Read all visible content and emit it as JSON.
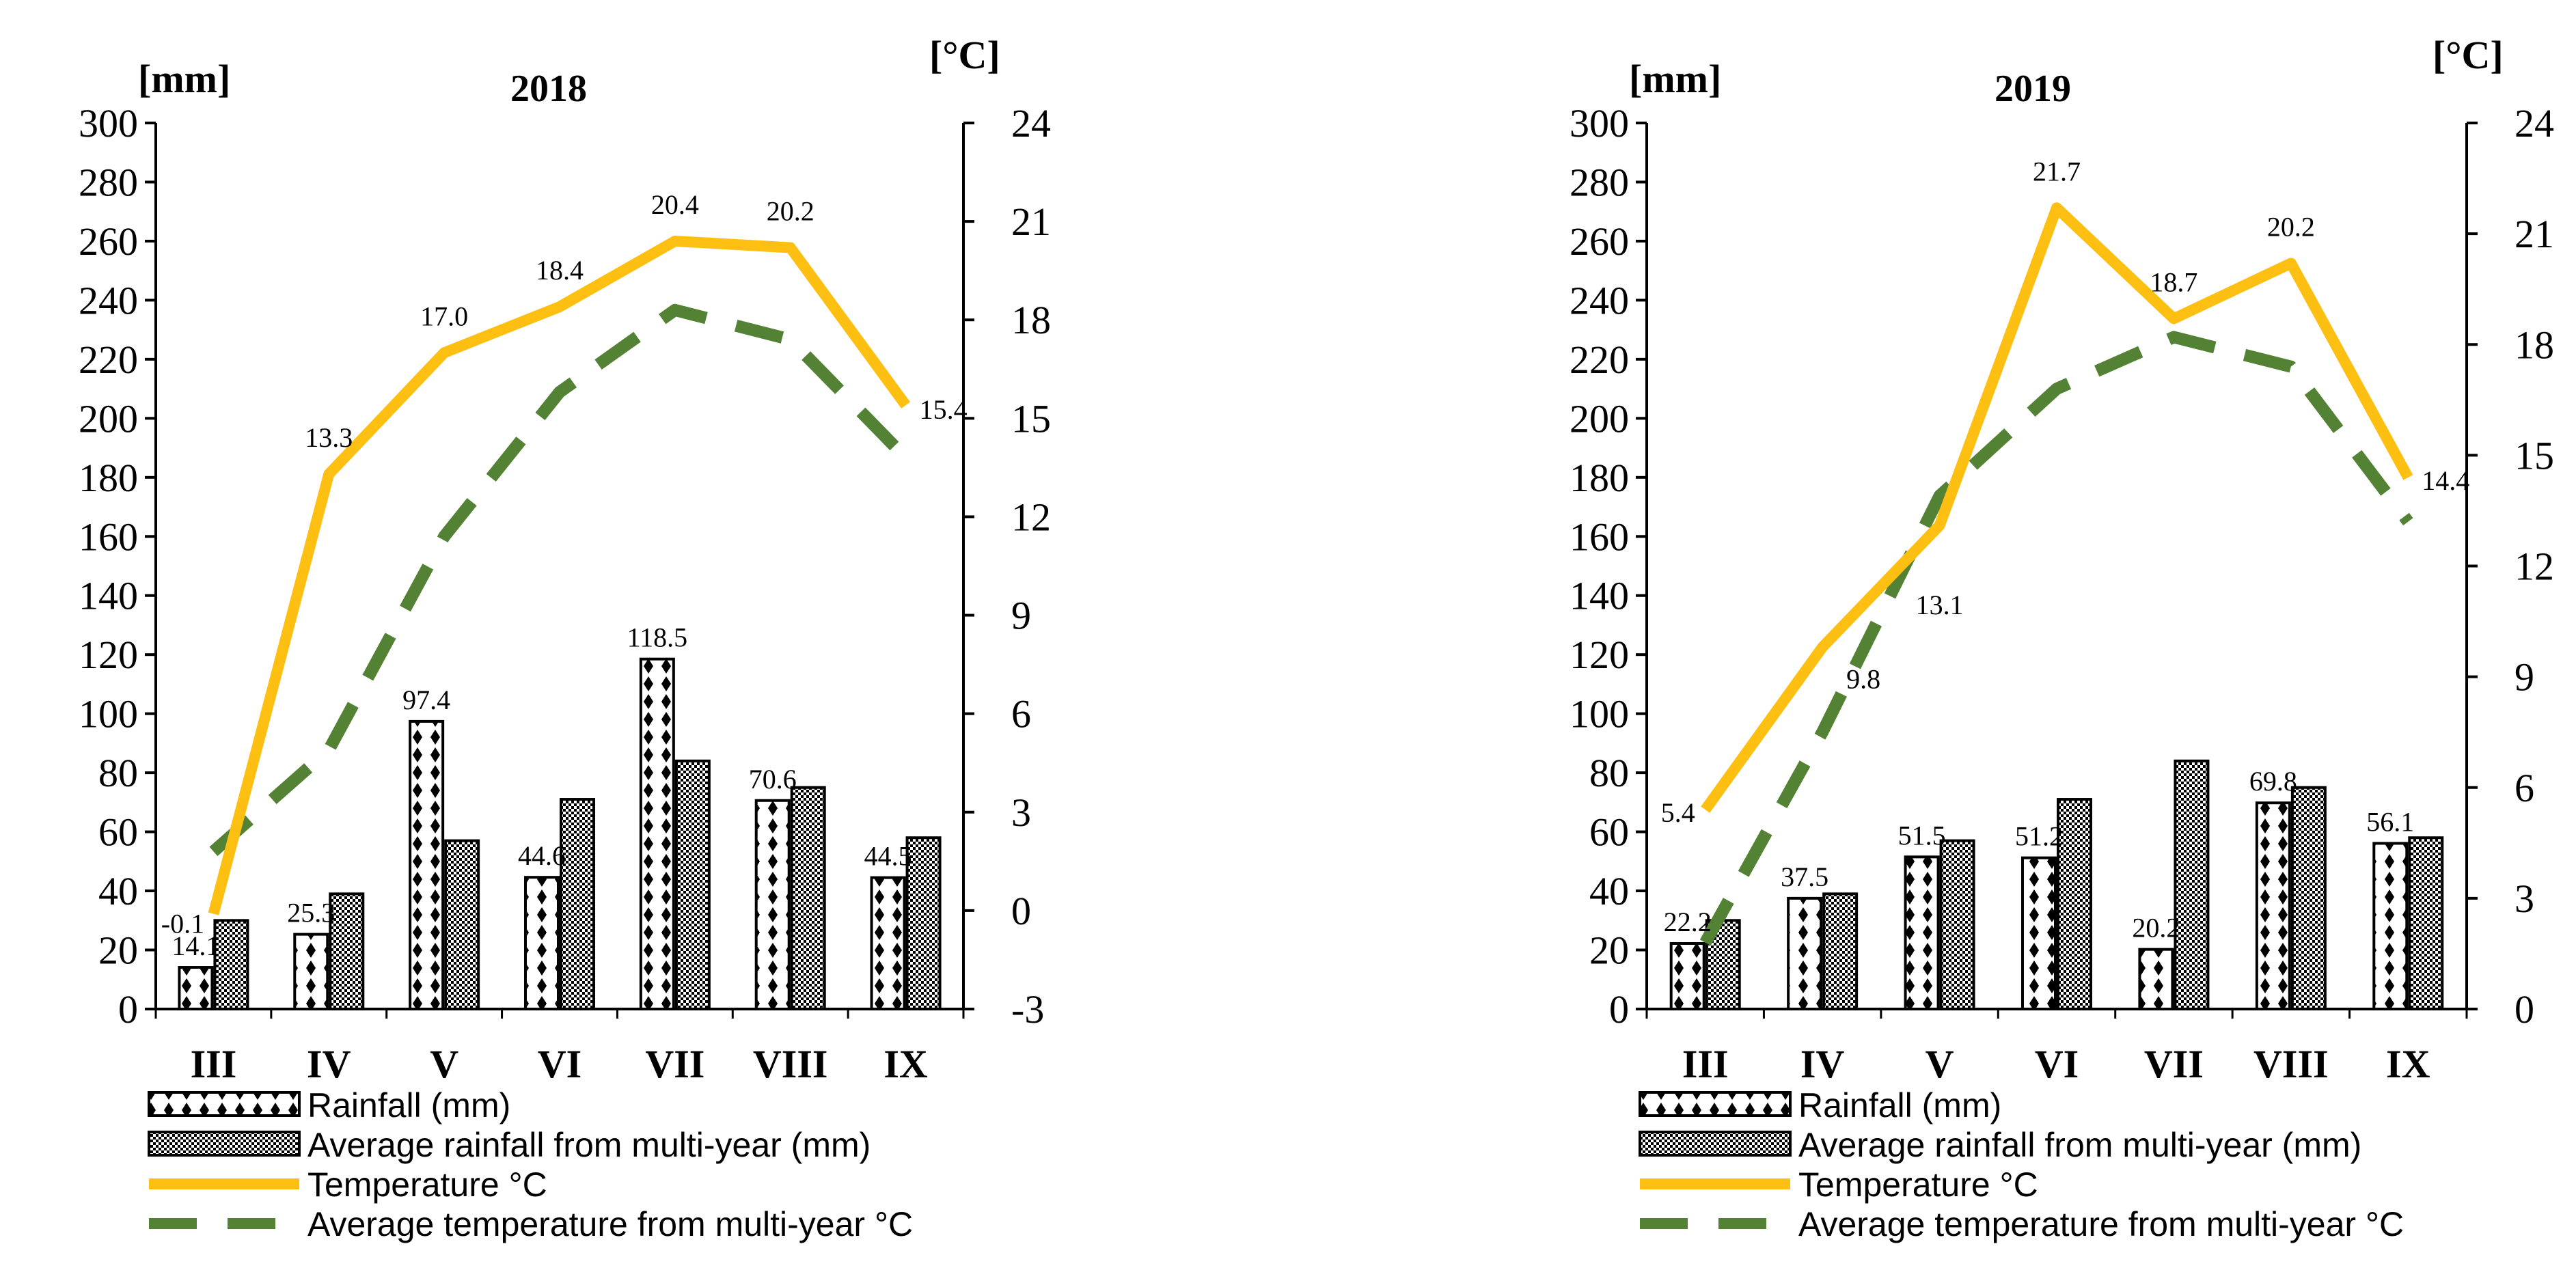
{
  "colors": {
    "temperature": "#FDBF12",
    "avg_temperature": "#548235",
    "bar_stroke": "#000000"
  },
  "legend": {
    "rainfall": "Rainfall (mm)",
    "avg_rainfall": "Average rainfall from multi-year (mm)",
    "temperature": "Temperature °C",
    "avg_temperature": "Average temperature from multi-year °C"
  },
  "chart_data": [
    {
      "type": "bar+line",
      "title": "2018",
      "left_axis_label": "[mm]",
      "right_axis_label": "[°C]",
      "categories": [
        "III",
        "IV",
        "V",
        "VI",
        "VII",
        "VIII",
        "IX"
      ],
      "left_ylim": [
        0,
        300
      ],
      "left_ticks": [
        0,
        20,
        40,
        60,
        80,
        100,
        120,
        140,
        160,
        180,
        200,
        220,
        240,
        260,
        280,
        300
      ],
      "right_ylim": [
        -3,
        24
      ],
      "right_ticks": [
        -3,
        0,
        3,
        6,
        9,
        12,
        15,
        18,
        21,
        24
      ],
      "series": [
        {
          "name": "Rainfall (mm)",
          "kind": "bar",
          "axis": "left",
          "values": [
            14.1,
            25.3,
            97.4,
            44.6,
            118.5,
            70.6,
            44.5
          ],
          "labels": [
            "14.1",
            "25.3",
            "97.4",
            "44.6",
            "118.5",
            "70.6",
            "44.5"
          ]
        },
        {
          "name": "Average rainfall from multi-year (mm)",
          "kind": "bar",
          "axis": "left",
          "values": [
            30,
            39,
            57,
            71,
            84,
            75,
            58
          ]
        },
        {
          "name": "Temperature °C",
          "kind": "line",
          "axis": "right",
          "values": [
            -0.1,
            13.3,
            17.0,
            18.4,
            20.4,
            20.2,
            15.4
          ],
          "labels": [
            "-0.1",
            "13.3",
            "17.0",
            "18.4",
            "20.4",
            "20.2",
            "15.4"
          ]
        },
        {
          "name": "Average temperature from multi-year °C",
          "kind": "line-dashed",
          "axis": "right",
          "values": [
            1.8,
            4.9,
            11.4,
            15.8,
            18.3,
            17.4,
            13.8
          ]
        }
      ]
    },
    {
      "type": "bar+line",
      "title": "2019",
      "left_axis_label": "[mm]",
      "right_axis_label": "[°C]",
      "categories": [
        "III",
        "IV",
        "V",
        "VI",
        "VII",
        "VIII",
        "IX"
      ],
      "left_ylim": [
        0,
        300
      ],
      "left_ticks": [
        0,
        20,
        40,
        60,
        80,
        100,
        120,
        140,
        160,
        180,
        200,
        220,
        240,
        260,
        280,
        300
      ],
      "right_ylim": [
        0,
        24
      ],
      "right_ticks": [
        0,
        3,
        6,
        9,
        12,
        15,
        18,
        21,
        24
      ],
      "series": [
        {
          "name": "Rainfall (mm)",
          "kind": "bar",
          "axis": "left",
          "values": [
            22.2,
            37.5,
            51.5,
            51.2,
            20.2,
            69.8,
            56.1
          ],
          "labels": [
            "22.2",
            "37.5",
            "51.5",
            "51.2",
            "20.2",
            "69.8",
            "56.1"
          ]
        },
        {
          "name": "Average rainfall from multi-year (mm)",
          "kind": "bar",
          "axis": "left",
          "values": [
            30,
            39,
            57,
            71,
            84,
            75,
            58
          ]
        },
        {
          "name": "Temperature °C",
          "kind": "line",
          "axis": "right",
          "values": [
            5.4,
            9.8,
            13.1,
            21.7,
            18.7,
            20.2,
            14.4
          ],
          "labels": [
            "5.4",
            "9.8",
            "13.1",
            "21.7",
            "18.7",
            "20.2",
            "14.4"
          ]
        },
        {
          "name": "Average temperature from multi-year °C",
          "kind": "line-dashed",
          "axis": "right",
          "values": [
            1.8,
            7.5,
            13.9,
            16.8,
            18.2,
            17.4,
            13.2
          ]
        }
      ]
    }
  ]
}
